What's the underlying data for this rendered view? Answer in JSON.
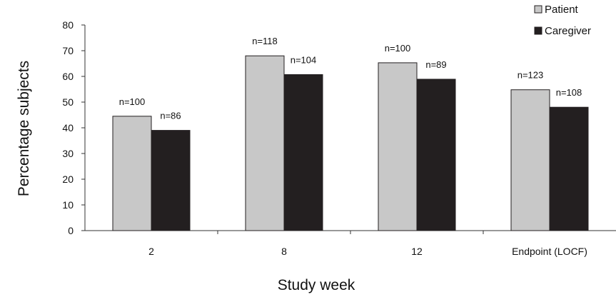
{
  "chart_data": {
    "type": "bar",
    "title": "",
    "xlabel": "Study week",
    "ylabel": "Percentage subjects",
    "ylim": [
      0,
      80
    ],
    "yticks": [
      0,
      10,
      20,
      30,
      40,
      50,
      60,
      70,
      80
    ],
    "grid": false,
    "legend_position": "top-right",
    "categories": [
      "2",
      "8",
      "12",
      "Endpoint (LOCF)"
    ],
    "series": [
      {
        "name": "Patient",
        "color": "#c8c8c8",
        "values": [
          44.5,
          68,
          65.3,
          54.8
        ],
        "labels": [
          "n=100",
          "n=118",
          "n=100",
          "n=123"
        ]
      },
      {
        "name": "Caregiver",
        "color": "#231f20",
        "values": [
          39,
          60.7,
          58.9,
          48
        ],
        "labels": [
          "n=86",
          "n=104",
          "n=89",
          "n=108"
        ]
      }
    ]
  }
}
